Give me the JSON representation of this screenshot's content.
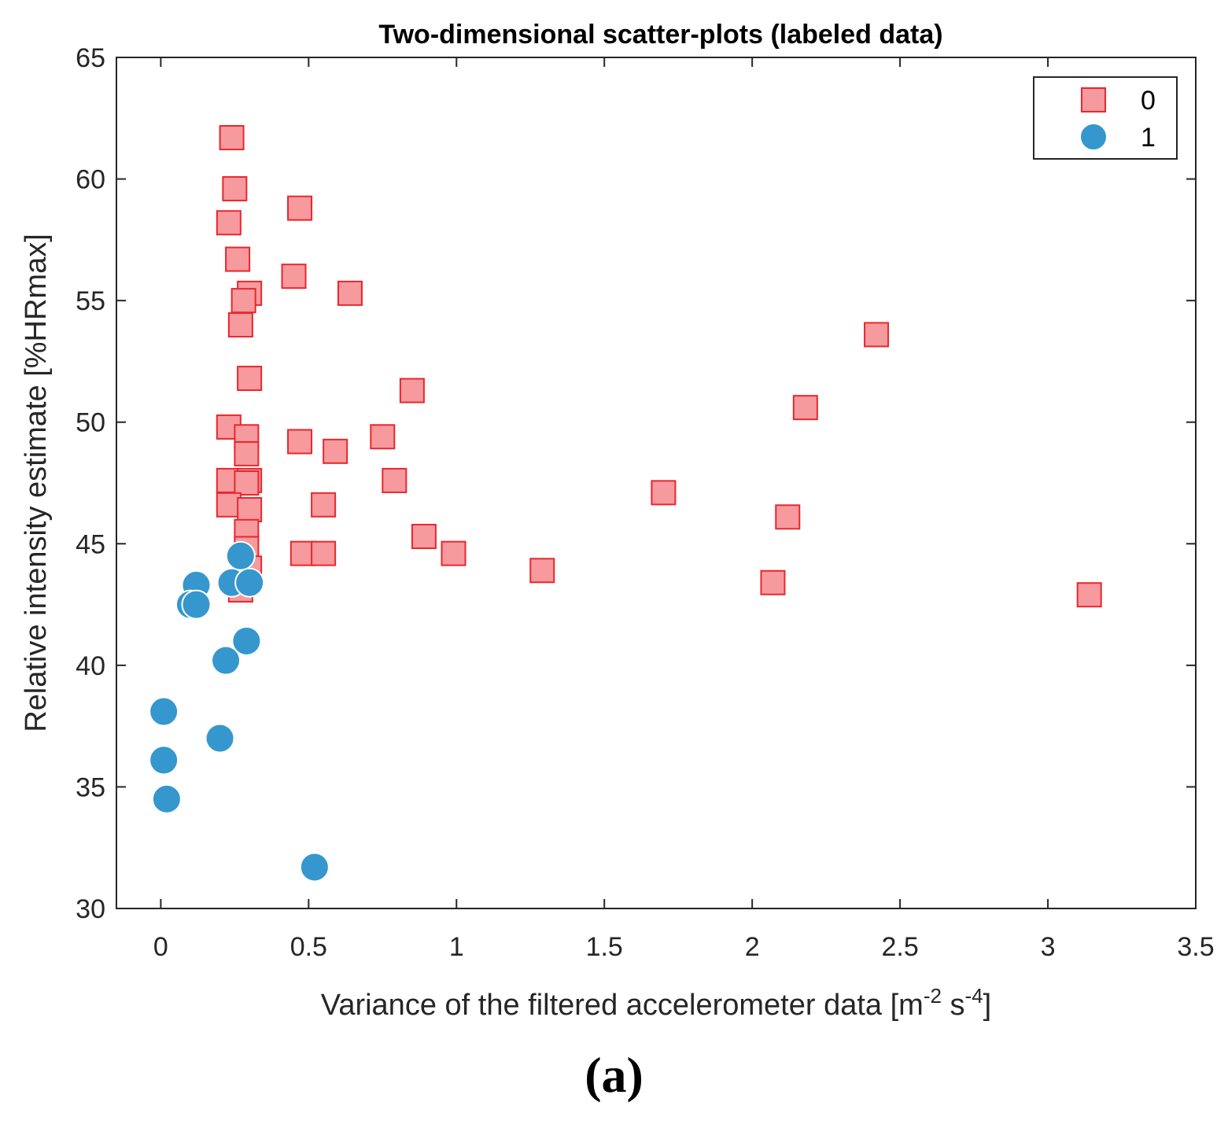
{
  "chart_data": {
    "type": "scatter",
    "title": "Two-dimensional scatter-plots (labeled data)",
    "xlabel": "Variance of the filtered accelerometer data [m",
    "xlabel_sup1": "-2",
    "xlabel_mid": " s",
    "xlabel_sup2": "-4",
    "xlabel_end": "]",
    "ylabel": "Relative intensity estimate [%HRmax]",
    "xlim": [
      -0.15,
      3.5
    ],
    "ylim": [
      30,
      65
    ],
    "xticks": [
      0,
      0.5,
      1,
      1.5,
      2,
      2.5,
      3,
      3.5
    ],
    "xtick_labels": [
      "0",
      "0.5",
      "1",
      "1.5",
      "2",
      "2.5",
      "3",
      "3.5"
    ],
    "yticks": [
      30,
      35,
      40,
      45,
      50,
      55,
      60,
      65
    ],
    "ytick_labels": [
      "30",
      "35",
      "40",
      "45",
      "50",
      "55",
      "60",
      "65"
    ],
    "legend_position": "top-right",
    "series": [
      {
        "name": "0",
        "marker": "square",
        "color": "#f79a9e",
        "edge_color": "#e8272d",
        "points": [
          [
            0.24,
            61.7
          ],
          [
            0.25,
            59.6
          ],
          [
            0.23,
            58.2
          ],
          [
            0.26,
            56.7
          ],
          [
            0.3,
            55.3
          ],
          [
            0.28,
            55.0
          ],
          [
            0.27,
            54.0
          ],
          [
            0.3,
            51.8
          ],
          [
            0.23,
            49.8
          ],
          [
            0.29,
            49.4
          ],
          [
            0.29,
            48.7
          ],
          [
            0.23,
            47.6
          ],
          [
            0.3,
            47.6
          ],
          [
            0.29,
            47.5
          ],
          [
            0.23,
            46.6
          ],
          [
            0.3,
            46.4
          ],
          [
            0.29,
            45.5
          ],
          [
            0.29,
            44.8
          ],
          [
            0.3,
            44.0
          ],
          [
            0.27,
            43.1
          ],
          [
            0.47,
            58.8
          ],
          [
            0.45,
            56.0
          ],
          [
            0.64,
            55.3
          ],
          [
            0.47,
            49.2
          ],
          [
            0.59,
            48.8
          ],
          [
            0.55,
            46.6
          ],
          [
            0.48,
            44.6
          ],
          [
            0.55,
            44.6
          ],
          [
            0.85,
            51.3
          ],
          [
            0.75,
            49.4
          ],
          [
            0.79,
            47.6
          ],
          [
            0.89,
            45.3
          ],
          [
            0.99,
            44.6
          ],
          [
            1.29,
            43.9
          ],
          [
            1.7,
            47.1
          ],
          [
            2.12,
            46.1
          ],
          [
            2.07,
            43.4
          ],
          [
            2.18,
            50.6
          ],
          [
            2.42,
            53.6
          ],
          [
            3.14,
            42.9
          ]
        ]
      },
      {
        "name": "1",
        "marker": "circle",
        "color": "#3597cd",
        "edge_color": "#ffffff",
        "points": [
          [
            0.27,
            44.5
          ],
          [
            0.12,
            43.3
          ],
          [
            0.24,
            43.4
          ],
          [
            0.3,
            43.4
          ],
          [
            0.1,
            42.5
          ],
          [
            0.12,
            42.5
          ],
          [
            0.29,
            41.0
          ],
          [
            0.22,
            40.2
          ],
          [
            0.01,
            38.1
          ],
          [
            0.2,
            37.0
          ],
          [
            0.01,
            36.1
          ],
          [
            0.02,
            34.5
          ],
          [
            0.52,
            31.7
          ]
        ]
      }
    ]
  },
  "caption": "(a)"
}
